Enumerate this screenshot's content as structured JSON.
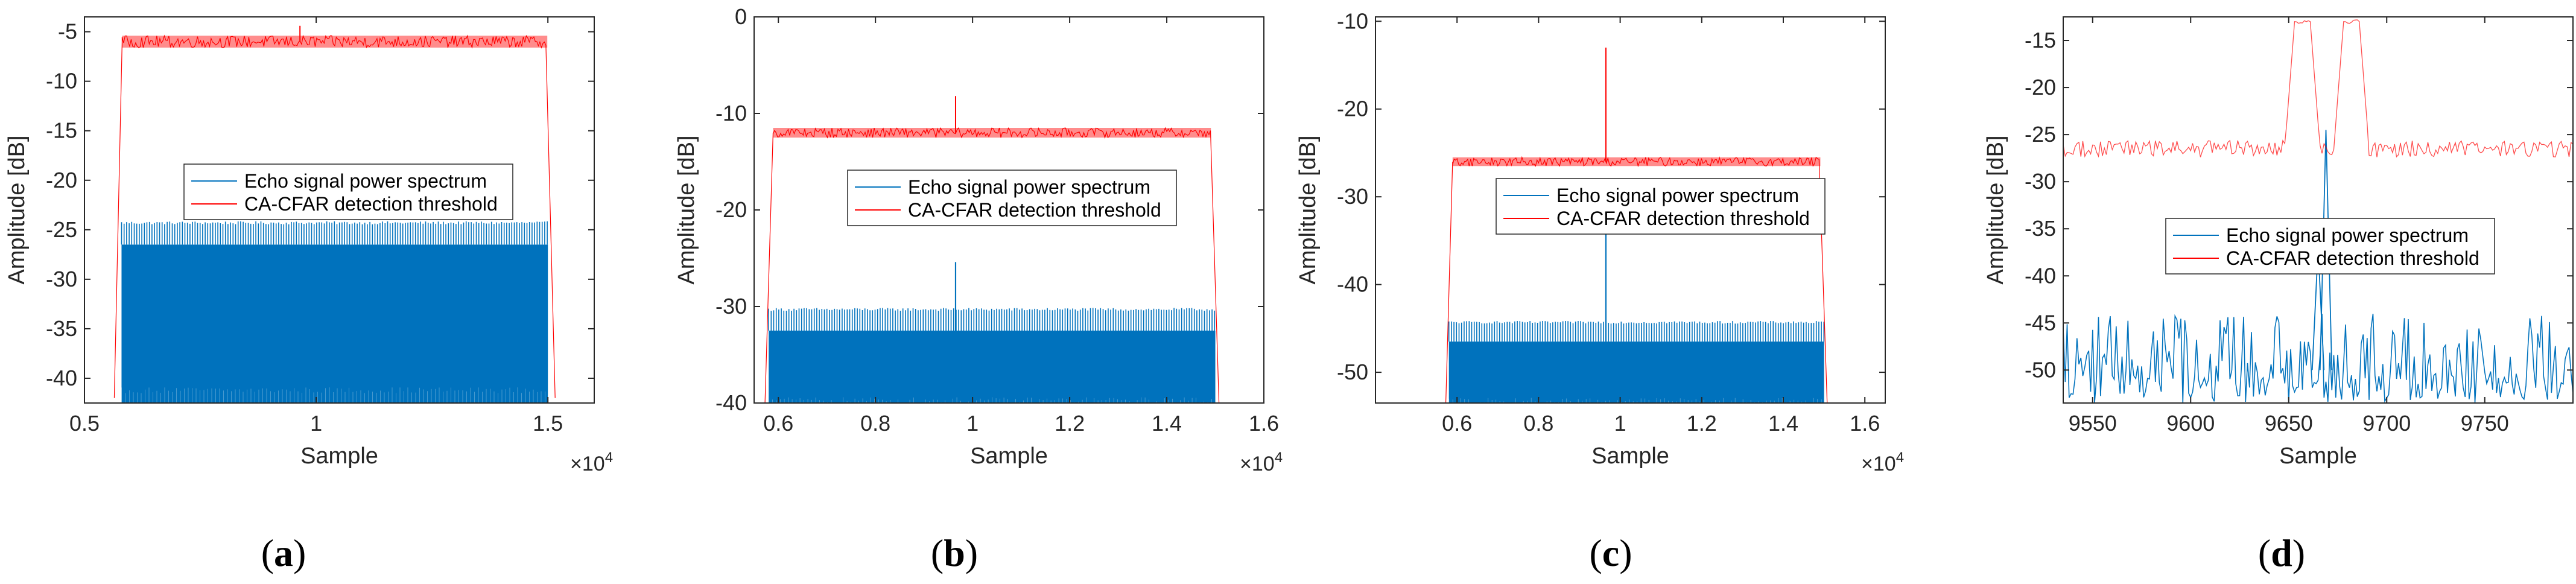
{
  "colors": {
    "echo": "#0072BD",
    "threshold": "#FF0000",
    "axis": "#262626"
  },
  "chart_data": [
    {
      "type": "line",
      "panel_label": "a",
      "xlabel": "Sample",
      "ylabel": "Amplitude [dB]",
      "xlim": [
        5000,
        16000
      ],
      "ylim": [
        -42.5,
        -3.5
      ],
      "xticks": [
        5000,
        10000,
        15000
      ],
      "xtick_labels": [
        "0.5",
        "1",
        "1.5"
      ],
      "yticks": [
        -40,
        -35,
        -30,
        -25,
        -20,
        -15,
        -10,
        -5
      ],
      "ytick_labels": [
        "-40",
        "-35",
        "-30",
        "-25",
        "-20",
        "-15",
        "-10",
        "-5"
      ],
      "x_multiplier": {
        "base": "×10",
        "exponent": "4"
      },
      "legend_position": "center",
      "series": [
        {
          "name": "Echo signal power spectrum",
          "kind": "echo",
          "x_start": 5800,
          "x_end": 15000,
          "top": -24.3,
          "band_top": -26.5,
          "bottom": -41.5,
          "floor": -42.5,
          "peaks": []
        },
        {
          "name": "CA-CFAR detection threshold",
          "kind": "threshold",
          "x_start": 5700,
          "x_end": 15100,
          "level": -6.0,
          "jitter": 0.6,
          "edge_low": -42.0,
          "peaks": [
            {
              "x": 9650,
              "value": -4.4
            }
          ]
        }
      ]
    },
    {
      "type": "line",
      "panel_label": "b",
      "xlabel": "Sample",
      "ylabel": "Amplitude [dB]",
      "xlim": [
        5500,
        16000
      ],
      "ylim": [
        -40,
        0
      ],
      "xticks": [
        6000,
        8000,
        10000,
        12000,
        14000,
        16000
      ],
      "xtick_labels": [
        "0.6",
        "0.8",
        "1",
        "1.2",
        "1.4",
        "1.6"
      ],
      "yticks": [
        -40,
        -30,
        -20,
        -10,
        0
      ],
      "ytick_labels": [
        "-40",
        "-30",
        "-20",
        "-10",
        "0"
      ],
      "x_multiplier": {
        "base": "×10",
        "exponent": "4"
      },
      "legend_position": "center",
      "series": [
        {
          "name": "Echo signal power spectrum",
          "kind": "echo",
          "x_start": 5800,
          "x_end": 15000,
          "top": -30.3,
          "band_top": -32.5,
          "bottom": -40,
          "floor": -40,
          "peaks": [
            {
              "x": 9650,
              "value": -25.4
            }
          ]
        },
        {
          "name": "CA-CFAR detection threshold",
          "kind": "threshold",
          "x_start": 5780,
          "x_end": 15020,
          "level": -12.0,
          "jitter": 0.5,
          "edge_low": -40,
          "peaks": [
            {
              "x": 9650,
              "value": -8.2
            }
          ]
        }
      ]
    },
    {
      "type": "line",
      "panel_label": "c",
      "xlabel": "Sample",
      "ylabel": "Amplitude [dB]",
      "xlim": [
        4000,
        16500
      ],
      "ylim": [
        -53.5,
        -9.5
      ],
      "xticks": [
        6000,
        8000,
        10000,
        12000,
        14000,
        16000
      ],
      "xtick_labels": [
        "0.6",
        "0.8",
        "1",
        "1.2",
        "1.4",
        "1.6"
      ],
      "yticks": [
        -50,
        -40,
        -30,
        -20,
        -10
      ],
      "ytick_labels": [
        "-50",
        "-40",
        "-30",
        "-20",
        "-10"
      ],
      "x_multiplier": {
        "base": "×10",
        "exponent": "4"
      },
      "legend_position": "center",
      "series": [
        {
          "name": "Echo signal power spectrum",
          "kind": "echo",
          "x_start": 5800,
          "x_end": 15000,
          "top": -44.3,
          "band_top": -46.5,
          "bottom": -53.5,
          "floor": -53.5,
          "peaks": [
            {
              "x": 9650,
              "value": -32.0
            }
          ]
        },
        {
          "name": "CA-CFAR detection threshold",
          "kind": "threshold",
          "x_start": 5780,
          "x_end": 15020,
          "level": -26.0,
          "jitter": 0.5,
          "edge_low": -53.5,
          "peaks": [
            {
              "x": 9650,
              "value": -13.0
            }
          ]
        }
      ]
    },
    {
      "type": "line",
      "panel_label": "d",
      "xlabel": "Sample",
      "ylabel": "Amplitude [dB]",
      "xlim": [
        9535,
        9795
      ],
      "ylim": [
        -53.5,
        -12.5
      ],
      "xticks": [
        9550,
        9600,
        9650,
        9700,
        9750
      ],
      "xtick_labels": [
        "9550",
        "9600",
        "9650",
        "9700",
        "9750"
      ],
      "yticks": [
        -50,
        -45,
        -40,
        -35,
        -30,
        -25,
        -20,
        -15
      ],
      "ytick_labels": [
        "-50",
        "-45",
        "-40",
        "-35",
        "-30",
        "-25",
        "-20",
        "-15"
      ],
      "x_multiplier": null,
      "legend_position": "center-right",
      "series": [
        {
          "name": "Echo signal power spectrum",
          "kind": "echo-zoom",
          "x_start": 9535,
          "x_end": 9795,
          "base_low": -53.5,
          "base_high": -44.0,
          "peaks": [
            {
              "x": 9669,
              "value": -24.5
            },
            {
              "x": 9665,
              "value": -37.0
            }
          ]
        },
        {
          "name": "CA-CFAR detection threshold",
          "kind": "threshold-zoom",
          "x_start": 9535,
          "x_end": 9795,
          "level": -26.5,
          "jitter": 0.9,
          "humps": [
            {
              "x": 9657,
              "value": -13.0
            },
            {
              "x": 9682,
              "value": -13.0
            }
          ]
        }
      ]
    }
  ]
}
